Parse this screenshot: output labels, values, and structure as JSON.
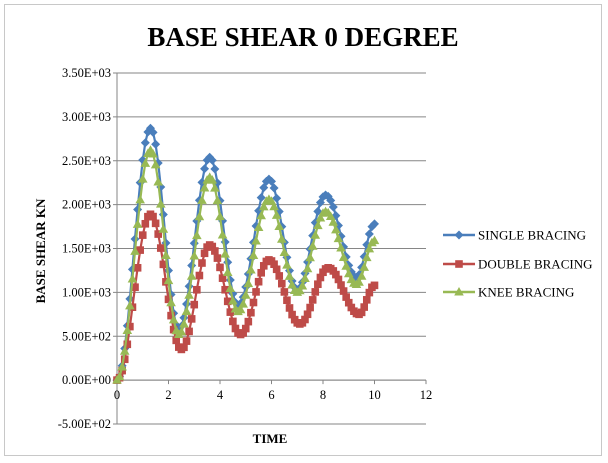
{
  "chart_data": {
    "type": "line",
    "title": "BASE SHEAR 0 DEGREE",
    "xlabel": "TIME",
    "ylabel": "BASE SHEAR KN",
    "xlim": [
      0,
      12
    ],
    "ylim": [
      -500,
      3500
    ],
    "x_ticks": [
      "0",
      "2",
      "4",
      "6",
      "8",
      "10",
      "12"
    ],
    "y_ticks": [
      "-5.00E+02",
      "0.00E+00",
      "5.00E+02",
      "1.00E+03",
      "1.50E+03",
      "2.00E+03",
      "2.50E+03",
      "3.00E+03",
      "3.50E+03"
    ],
    "y_tick_values": [
      -500,
      0,
      500,
      1000,
      1500,
      2000,
      2500,
      3000,
      3500
    ],
    "x_tick_values": [
      0,
      2,
      4,
      6,
      8,
      10,
      12
    ],
    "grid": "horizontal",
    "legend_position": "right",
    "series": [
      {
        "name": "SINGLE BRACING",
        "color": "#4a7ebb",
        "marker": "diamond",
        "peaks": [
          [
            0,
            0
          ],
          [
            1.3,
            2870
          ],
          [
            2.4,
            580
          ],
          [
            3.6,
            2540
          ],
          [
            4.7,
            850
          ],
          [
            5.9,
            2290
          ],
          [
            7.0,
            1030
          ],
          [
            8.1,
            2110
          ],
          [
            9.3,
            1170
          ],
          [
            10.0,
            1780
          ]
        ]
      },
      {
        "name": "DOUBLE BRACING",
        "color": "#be4b48",
        "marker": "square",
        "peaks": [
          [
            0,
            0
          ],
          [
            1.3,
            1890
          ],
          [
            2.5,
            350
          ],
          [
            3.6,
            1540
          ],
          [
            4.8,
            520
          ],
          [
            5.9,
            1370
          ],
          [
            7.1,
            640
          ],
          [
            8.2,
            1280
          ],
          [
            9.4,
            750
          ],
          [
            10.0,
            1080
          ]
        ]
      },
      {
        "name": "KNEE  BRACING",
        "color": "#98b954",
        "marker": "triangle",
        "peaks": [
          [
            0,
            0
          ],
          [
            1.3,
            2620
          ],
          [
            2.4,
            520
          ],
          [
            3.6,
            2310
          ],
          [
            4.7,
            780
          ],
          [
            5.9,
            2060
          ],
          [
            7.0,
            1000
          ],
          [
            8.1,
            1920
          ],
          [
            9.3,
            1090
          ],
          [
            10.0,
            1590
          ]
        ]
      }
    ]
  }
}
